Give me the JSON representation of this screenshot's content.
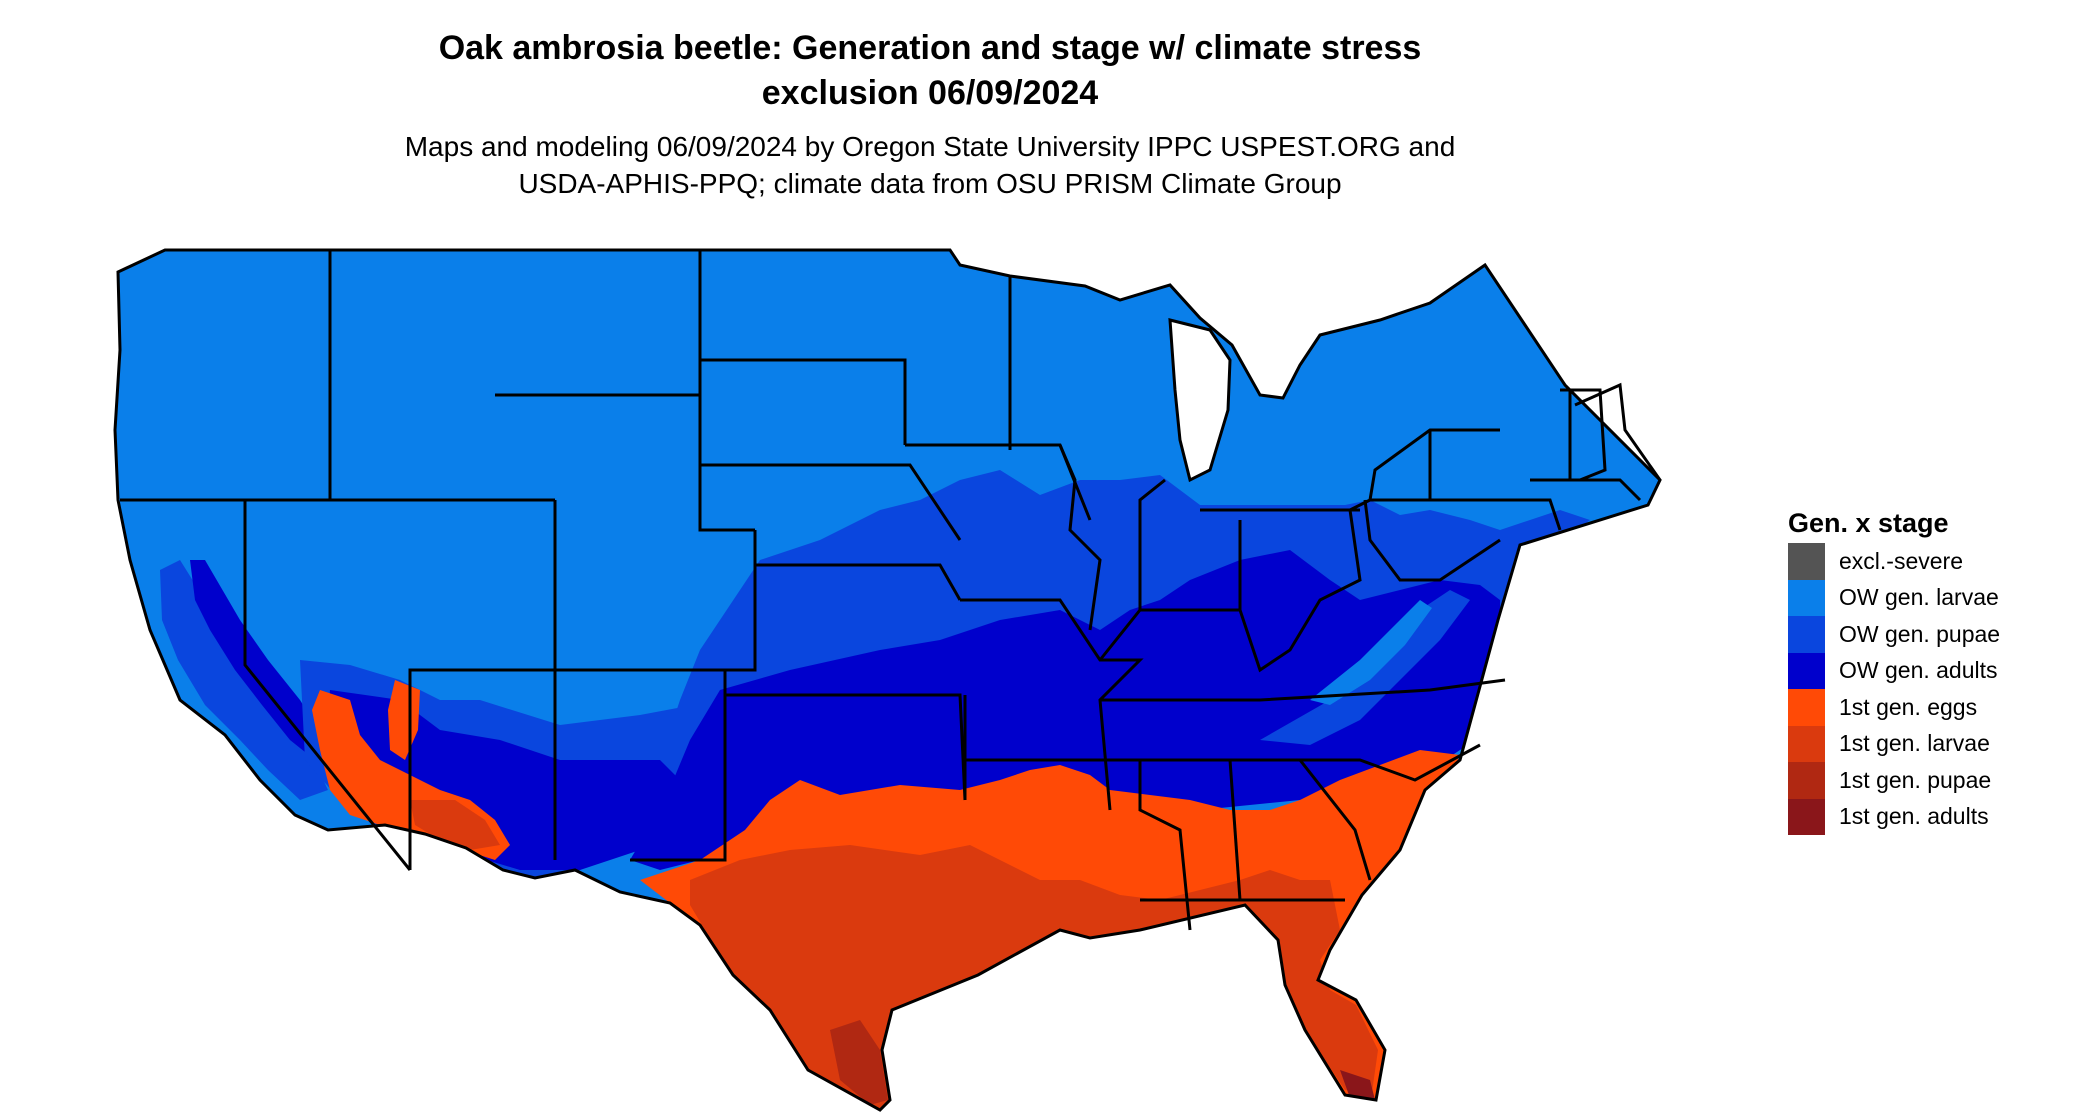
{
  "title_line1": "Oak ambrosia beetle: Generation and stage w/ climate stress",
  "title_line2": "exclusion 06/09/2024",
  "subtitle_line1": "Maps and modeling 06/09/2024 by Oregon State University IPPC USPEST.ORG and",
  "subtitle_line2": "USDA-APHIS-PPQ; climate data from OSU PRISM Climate Group",
  "legend": {
    "title": "Gen. x stage",
    "items": [
      {
        "label": "excl.-severe",
        "color": "#545454"
      },
      {
        "label": "OW gen. larvae",
        "color": "#0a7fea"
      },
      {
        "label": "OW gen. pupae",
        "color": "#0a46de"
      },
      {
        "label": "OW gen. adults",
        "color": "#0000cc"
      },
      {
        "label": "1st gen. eggs",
        "color": "#ff4a06"
      },
      {
        "label": "1st gen. larvae",
        "color": "#da3a0e"
      },
      {
        "label": "1st gen. pupae",
        "color": "#b02812"
      },
      {
        "label": "1st gen. adults",
        "color": "#8a161a"
      }
    ]
  }
}
